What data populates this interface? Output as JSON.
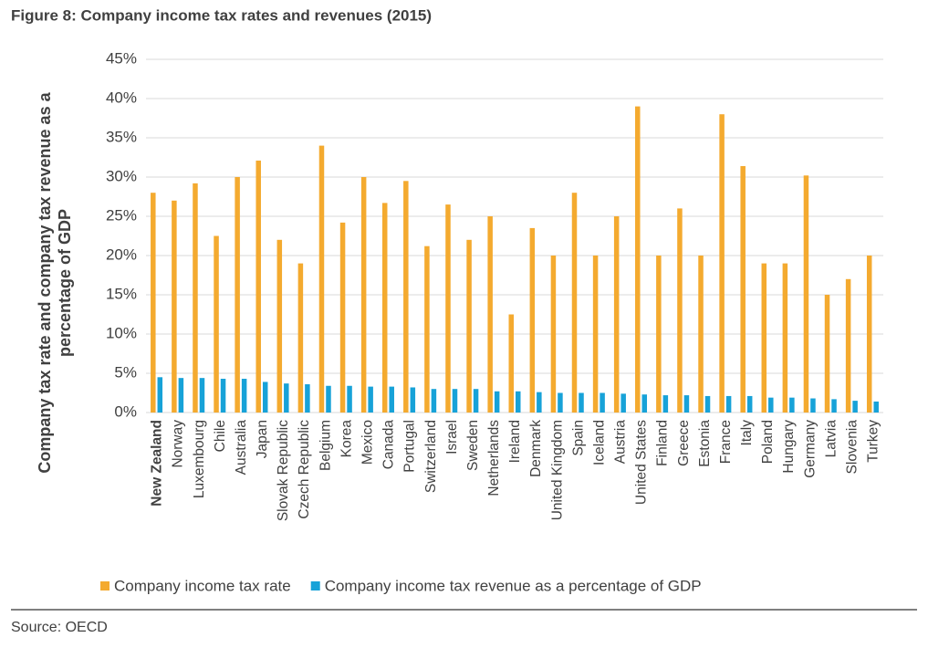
{
  "chart_data": {
    "type": "bar",
    "title": "Figure 8: Company income tax rates and revenues (2015)",
    "y_label": [
      "Company tax rate and company tax revenue as a",
      "percentage of GDP"
    ],
    "source": "Source: OECD",
    "categories": [
      "New Zealand",
      "Norway",
      "Luxembourg",
      "Chile",
      "Australia",
      "Japan",
      "Slovak Republic",
      "Czech Republic",
      "Belgium",
      "Korea",
      "Mexico",
      "Canada",
      "Portugal",
      "Switzerland",
      "Israel",
      "Sweden",
      "Netherlands",
      "Ireland",
      "Denmark",
      "United Kingdom",
      "Spain",
      "Iceland",
      "Austria",
      "United States",
      "Finland",
      "Greece",
      "Estonia",
      "France",
      "Italy",
      "Poland",
      "Hungary",
      "Germany",
      "Latvia",
      "Slovenia",
      "Turkey"
    ],
    "series": [
      {
        "name": "Company income tax rate",
        "color": "#f4aa2f",
        "values": [
          28,
          27,
          29.2,
          22.5,
          30,
          32.1,
          22,
          19,
          34,
          24.2,
          30,
          26.7,
          29.5,
          21.2,
          26.5,
          22,
          25,
          12.5,
          23.5,
          20,
          28,
          20,
          25,
          39,
          20,
          26,
          20,
          38,
          31.4,
          19,
          19,
          30.2,
          15,
          17,
          20
        ]
      },
      {
        "name": "Company income tax revenue as a percentage of GDP",
        "color": "#17a2d8",
        "values": [
          4.5,
          4.4,
          4.4,
          4.3,
          4.3,
          3.9,
          3.7,
          3.6,
          3.4,
          3.4,
          3.3,
          3.3,
          3.2,
          3.0,
          3.0,
          3.0,
          2.7,
          2.7,
          2.6,
          2.5,
          2.5,
          2.5,
          2.4,
          2.3,
          2.2,
          2.2,
          2.1,
          2.1,
          2.1,
          1.9,
          1.9,
          1.8,
          1.7,
          1.5,
          1.4
        ]
      }
    ],
    "ylim": [
      0,
      45
    ],
    "yticks": [
      {
        "value": 0,
        "label": "0%"
      },
      {
        "value": 5,
        "label": "5%"
      },
      {
        "value": 10,
        "label": "10%"
      },
      {
        "value": 15,
        "label": "15%"
      },
      {
        "value": 20,
        "label": "20%"
      },
      {
        "value": 25,
        "label": "25%"
      },
      {
        "value": 30,
        "label": "30%"
      },
      {
        "value": 35,
        "label": "35%"
      },
      {
        "value": 40,
        "label": "40%"
      },
      {
        "value": 45,
        "label": "45%"
      }
    ],
    "grid": true
  }
}
